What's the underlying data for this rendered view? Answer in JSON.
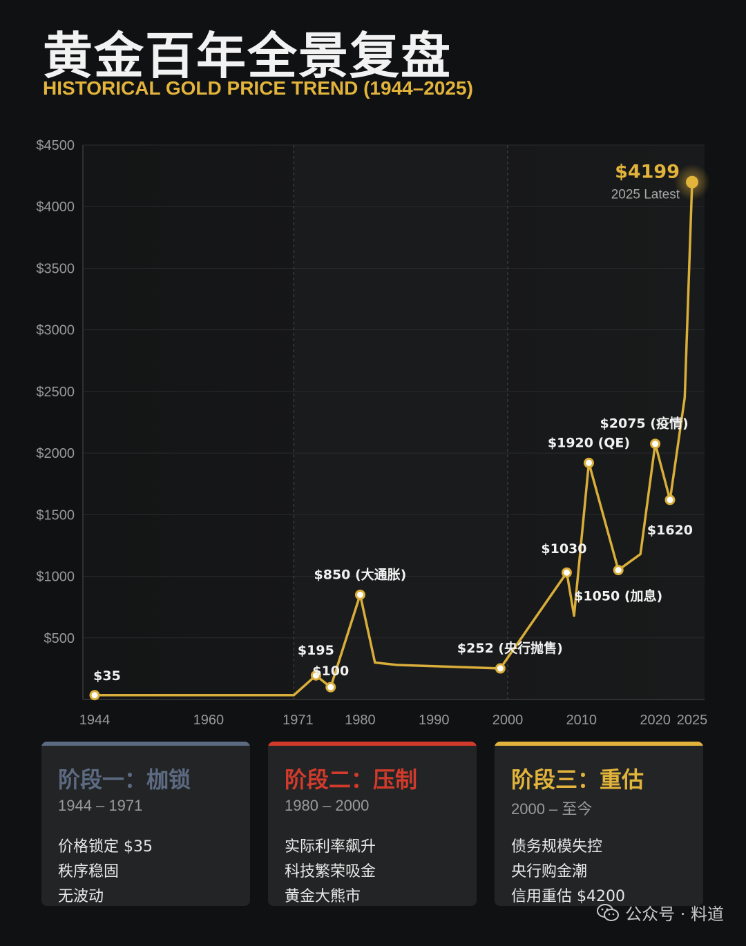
{
  "title": "黄金百年全景复盘",
  "subtitle": "HISTORICAL GOLD PRICE TREND (1944–2025)",
  "colors": {
    "gold": "#e2b43b",
    "stage1": "#5c6a82",
    "stage2": "#d23b2c",
    "stage3": "#e2b43b"
  },
  "chart_data": {
    "type": "line",
    "x": [
      1944,
      1960,
      1971,
      1974,
      1976,
      1980,
      1982,
      1985,
      1999,
      2008,
      2009,
      2011,
      2015,
      2018,
      2020,
      2022,
      2024,
      2025
    ],
    "values": [
      35,
      35,
      35,
      195,
      100,
      850,
      300,
      280,
      252,
      1030,
      680,
      1920,
      1050,
      1180,
      2075,
      1620,
      2450,
      4199
    ],
    "xticks": [
      "1944",
      "1960",
      "1971",
      "1980",
      "1990",
      "2000",
      "2010",
      "2020",
      "2025"
    ],
    "yticks": [
      "$500",
      "$1000",
      "$1500",
      "$2000",
      "$2500",
      "$3000",
      "$3500",
      "$4000",
      "$4500"
    ],
    "ylim": [
      0,
      4500
    ],
    "xlim": [
      1944,
      2025
    ],
    "annotations": [
      {
        "year": 1944,
        "value": 35,
        "label": "$35"
      },
      {
        "year": 1974,
        "value": 195,
        "label": "$195"
      },
      {
        "year": 1976,
        "value": 100,
        "label": "$100"
      },
      {
        "year": 1980,
        "value": 850,
        "label": "$850 (大通胀)"
      },
      {
        "year": 1999,
        "value": 252,
        "label": "$252 (央行抛售)"
      },
      {
        "year": 2008,
        "value": 1030,
        "label": "$1030"
      },
      {
        "year": 2011,
        "value": 1920,
        "label": "$1920 (QE)"
      },
      {
        "year": 2015,
        "value": 1050,
        "label": "$1050 (加息)"
      },
      {
        "year": 2020,
        "value": 2075,
        "label": "$2075 (疫情)"
      },
      {
        "year": 2022,
        "value": 1620,
        "label": "$1620"
      }
    ],
    "latest": {
      "year": 2025,
      "value": 4199,
      "label": "$4199",
      "note": "2025 Latest"
    },
    "phase_dividers": [
      1971,
      2000
    ],
    "grid": true
  },
  "cards": [
    {
      "title": "阶段一：枷锁",
      "years": "1944 – 1971",
      "lines": [
        "价格锁定 $35",
        "秩序稳固",
        "无波动"
      ]
    },
    {
      "title": "阶段二：压制",
      "years": "1980 – 2000",
      "lines": [
        "实际利率飙升",
        "科技繁荣吸金",
        "黄金大熊市"
      ]
    },
    {
      "title": "阶段三：重估",
      "years": "2000 – 至今",
      "lines": [
        "债务规模失控",
        "央行购金潮",
        "信用重估 $4200"
      ]
    }
  ],
  "watermark": "公众号 · 料道"
}
